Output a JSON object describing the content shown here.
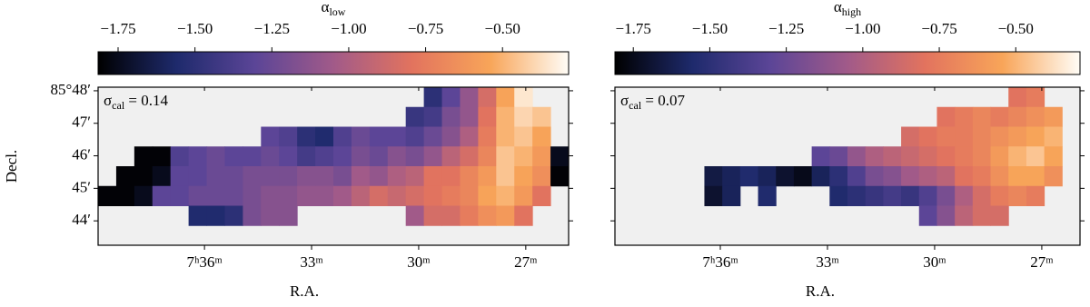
{
  "chart_data": [
    {
      "type": "heatmap",
      "colorbar_label": "αlow",
      "annotation": "σcal = 0.14",
      "xlabel": "R.A.",
      "ylabel": "Decl.",
      "xlim": [
        38.98,
        25.8
      ],
      "ylim": [
        43.25,
        48.11
      ],
      "xticks": [
        {
          "value": 36,
          "label": "7ʰ36ᵐ"
        },
        {
          "value": 33,
          "label": "33ᵐ"
        },
        {
          "value": 30,
          "label": "30ᵐ"
        },
        {
          "value": 27,
          "label": "27ᵐ"
        }
      ],
      "yticks": [
        {
          "value": 48,
          "label": "85°48′"
        },
        {
          "value": 47,
          "label": "47′"
        },
        {
          "value": 46,
          "label": "46′"
        },
        {
          "value": 45,
          "label": "45′"
        },
        {
          "value": 44,
          "label": "44′"
        }
      ],
      "clim": [
        -1.815,
        -0.285
      ],
      "cticks": [
        {
          "value": -1.75,
          "label": "−1.75"
        },
        {
          "value": -1.5,
          "label": "−1.50"
        },
        {
          "value": -1.25,
          "label": "−1.25"
        },
        {
          "value": -1.0,
          "label": "−1.00"
        },
        {
          "value": -0.75,
          "label": "−0.75"
        },
        {
          "value": -0.5,
          "label": "−0.50"
        }
      ],
      "colormap": [
        "#000000",
        "#1e2a6c",
        "#5b4597",
        "#a15a89",
        "#e2735e",
        "#f8a559",
        "#fffdf7"
      ],
      "z": [
        [
          null,
          null,
          null,
          null,
          null,
          null,
          null,
          null,
          null,
          null,
          null,
          null,
          null,
          null,
          null,
          null,
          null,
          null,
          -1.5,
          -1.3,
          -1.1,
          -0.85,
          -0.55,
          -0.35,
          null,
          null
        ],
        [
          null,
          null,
          null,
          null,
          null,
          null,
          null,
          null,
          null,
          null,
          null,
          null,
          null,
          null,
          null,
          null,
          null,
          -1.45,
          -1.4,
          -1.2,
          -1.1,
          -0.8,
          -0.5,
          -0.4,
          -0.45,
          null
        ],
        [
          null,
          null,
          null,
          null,
          null,
          null,
          null,
          null,
          null,
          -1.3,
          -1.35,
          -1.5,
          -1.55,
          -1.35,
          -1.25,
          -1.3,
          -1.3,
          -1.35,
          -1.25,
          -1.15,
          -1.0,
          -0.75,
          -0.5,
          -0.45,
          -0.55,
          null
        ],
        [
          null,
          null,
          -1.8,
          -1.8,
          -1.35,
          -1.3,
          -1.25,
          -1.3,
          -1.3,
          -1.25,
          -1.3,
          -1.4,
          -1.35,
          -1.3,
          -1.2,
          -1.25,
          -1.15,
          -1.2,
          -1.1,
          -0.95,
          -0.85,
          -0.7,
          -0.45,
          -0.5,
          -0.6,
          -1.75
        ],
        [
          null,
          -1.8,
          -1.8,
          -1.75,
          -1.3,
          -1.3,
          -1.25,
          -1.25,
          -1.2,
          -1.2,
          -1.2,
          -1.15,
          -1.15,
          -1.2,
          -1.05,
          -1.1,
          -1.0,
          -0.95,
          -0.8,
          -0.8,
          -0.7,
          -0.6,
          -0.45,
          -0.55,
          -0.65,
          -1.8
        ],
        [
          -1.8,
          -1.8,
          -1.75,
          -1.3,
          -1.3,
          -1.25,
          -1.25,
          -1.25,
          -1.2,
          -1.15,
          -1.15,
          -1.1,
          -1.1,
          -1.05,
          -0.95,
          -0.85,
          -0.9,
          -0.85,
          -0.8,
          -0.75,
          -0.7,
          -0.55,
          -0.5,
          -0.6,
          -0.8,
          null
        ],
        [
          null,
          null,
          null,
          null,
          null,
          -1.55,
          -1.55,
          -1.5,
          -1.2,
          -1.15,
          -1.15,
          null,
          null,
          null,
          null,
          null,
          null,
          -1.05,
          -0.85,
          -0.85,
          -0.75,
          -0.65,
          -0.6,
          -0.8,
          null,
          null
        ],
        [
          null,
          null,
          null,
          null,
          null,
          null,
          null,
          null,
          null,
          null,
          null,
          null,
          null,
          null,
          null,
          null,
          null,
          null,
          null,
          null,
          null,
          null,
          null,
          null,
          null,
          null
        ]
      ]
    },
    {
      "type": "heatmap",
      "colorbar_label": "αhigh",
      "annotation": "σcal = 0.07",
      "xlabel": "R.A.",
      "xlim": [
        38.95,
        25.93
      ],
      "ylim": [
        43.25,
        48.11
      ],
      "xticks": [
        {
          "value": 36,
          "label": "7ʰ36ᵐ"
        },
        {
          "value": 33,
          "label": "33ᵐ"
        },
        {
          "value": 30,
          "label": "30ᵐ"
        },
        {
          "value": 27,
          "label": "27ᵐ"
        }
      ],
      "clim": [
        -1.81,
        -0.29
      ],
      "cticks": [
        {
          "value": -1.75,
          "label": "−1.75"
        },
        {
          "value": -1.5,
          "label": "−1.50"
        },
        {
          "value": -1.25,
          "label": "−1.25"
        },
        {
          "value": -1.0,
          "label": "−1.00"
        },
        {
          "value": -0.75,
          "label": "−0.75"
        },
        {
          "value": -0.5,
          "label": "−0.50"
        }
      ],
      "colormap": [
        "#000000",
        "#1e2a6c",
        "#5b4597",
        "#a15a89",
        "#e2735e",
        "#f8a559",
        "#fffdf7"
      ],
      "z": [
        [
          null,
          null,
          null,
          null,
          null,
          null,
          null,
          null,
          null,
          null,
          null,
          null,
          null,
          null,
          null,
          null,
          null,
          null,
          null,
          null,
          null,
          null,
          -0.8,
          -0.75,
          null,
          null
        ],
        [
          null,
          null,
          null,
          null,
          null,
          null,
          null,
          null,
          null,
          null,
          null,
          null,
          null,
          null,
          null,
          null,
          null,
          null,
          -0.8,
          -0.75,
          -0.7,
          -0.75,
          -0.7,
          -0.65,
          -0.6,
          null
        ],
        [
          null,
          null,
          null,
          null,
          null,
          null,
          null,
          null,
          null,
          null,
          null,
          null,
          null,
          null,
          null,
          null,
          -0.85,
          -0.8,
          -0.75,
          -0.75,
          -0.7,
          -0.65,
          -0.6,
          -0.55,
          -0.5,
          null
        ],
        [
          null,
          null,
          null,
          null,
          null,
          null,
          null,
          null,
          null,
          null,
          null,
          -1.3,
          -1.25,
          -1.1,
          -1.0,
          -0.95,
          -0.9,
          -0.85,
          -0.8,
          -0.75,
          -0.7,
          -0.6,
          -0.5,
          -0.45,
          -0.55,
          null
        ],
        [
          null,
          null,
          null,
          null,
          null,
          -1.65,
          -1.6,
          -1.55,
          -1.6,
          -1.7,
          -1.75,
          -1.6,
          -1.5,
          -1.35,
          -1.2,
          -1.15,
          -1.05,
          -1.0,
          -0.95,
          -0.8,
          -0.75,
          -0.65,
          -0.55,
          -0.55,
          -0.65,
          null
        ],
        [
          null,
          null,
          null,
          null,
          null,
          -1.7,
          -1.6,
          null,
          -1.55,
          null,
          null,
          null,
          -1.55,
          -1.5,
          -1.45,
          -1.4,
          -1.45,
          -1.35,
          -1.2,
          -1.0,
          -0.85,
          -0.75,
          -0.7,
          -0.75,
          null,
          null
        ],
        [
          null,
          null,
          null,
          null,
          null,
          null,
          null,
          null,
          null,
          null,
          null,
          null,
          null,
          null,
          null,
          null,
          null,
          -1.3,
          -1.15,
          -0.95,
          -0.85,
          -0.85,
          null,
          null,
          null,
          null
        ],
        [
          null,
          null,
          null,
          null,
          null,
          null,
          null,
          null,
          null,
          null,
          null,
          null,
          null,
          null,
          null,
          null,
          null,
          null,
          null,
          null,
          null,
          null,
          null,
          null,
          null,
          null
        ]
      ]
    }
  ]
}
